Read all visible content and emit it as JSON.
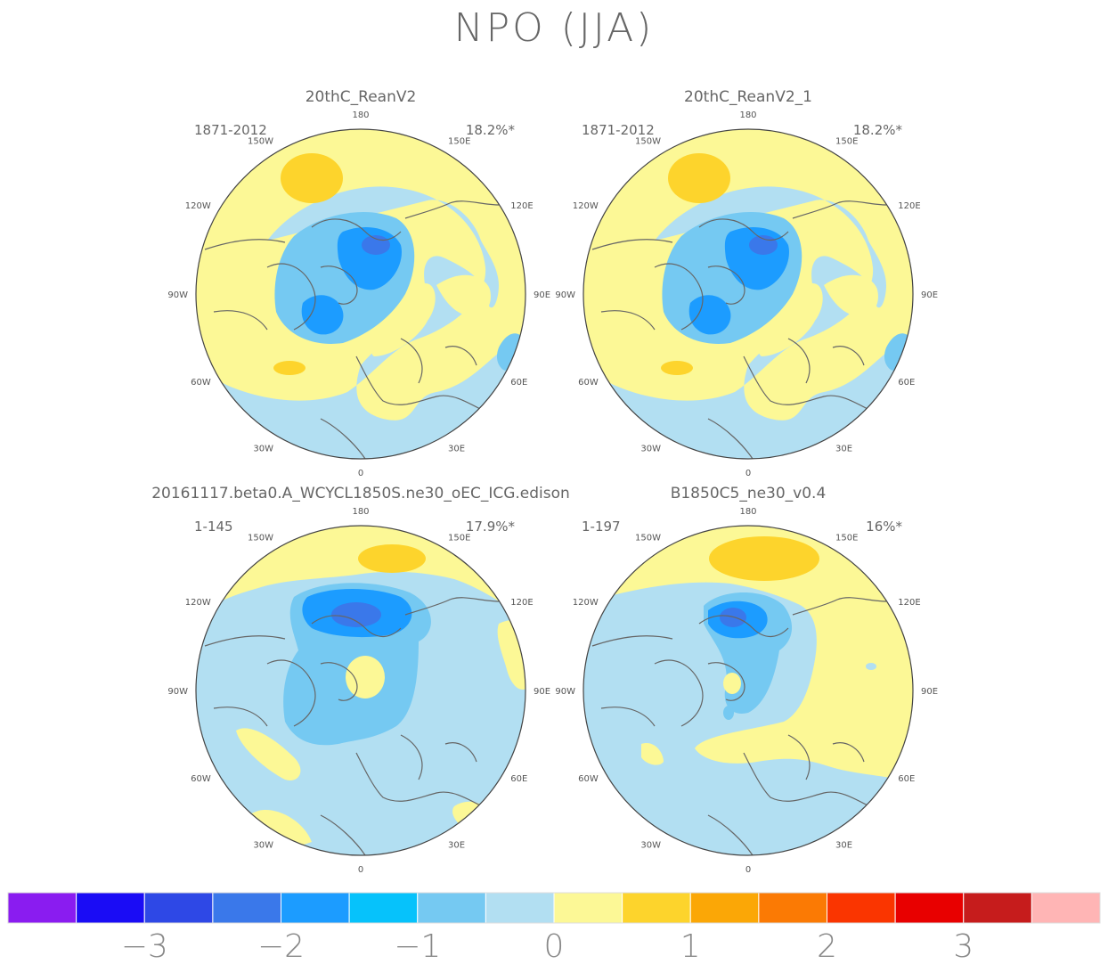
{
  "title": "NPO (JJA)",
  "panels": [
    {
      "name": "20thC_ReanV2",
      "period": "1871-2012",
      "variance": "18.2%*"
    },
    {
      "name": "20thC_ReanV2_1",
      "period": "1871-2012",
      "variance": "18.2%*"
    },
    {
      "name": "20161117.beta0.A_WCYCL1850S.ne30_oEC_ICG.edison",
      "period": "1-145",
      "variance": "17.9%*"
    },
    {
      "name": "B1850C5_ne30_v0.4",
      "period": "1-197",
      "variance": "16%*"
    }
  ],
  "lon_labels": {
    "top": "180",
    "bottom": "0",
    "l150": "150W",
    "r150": "150E",
    "l120": "120W",
    "r120": "120E",
    "l90": "90W",
    "r90": "90E",
    "l60": "60W",
    "r60": "60E",
    "l30": "30W",
    "r30": "30E"
  },
  "colorbar": {
    "colors": [
      "#8a1cf0",
      "#1a0cf5",
      "#2e48e6",
      "#3a78ea",
      "#1c9cff",
      "#06c2fb",
      "#75c9f2",
      "#b2dff2",
      "#fcf896",
      "#fdd42c",
      "#fba706",
      "#fb7a04",
      "#fa3500",
      "#e80000",
      "#c61c1c",
      "#ffb5b5"
    ],
    "labels": [
      "−3",
      "−2",
      "−1",
      "0",
      "1",
      "2",
      "3"
    ]
  }
}
